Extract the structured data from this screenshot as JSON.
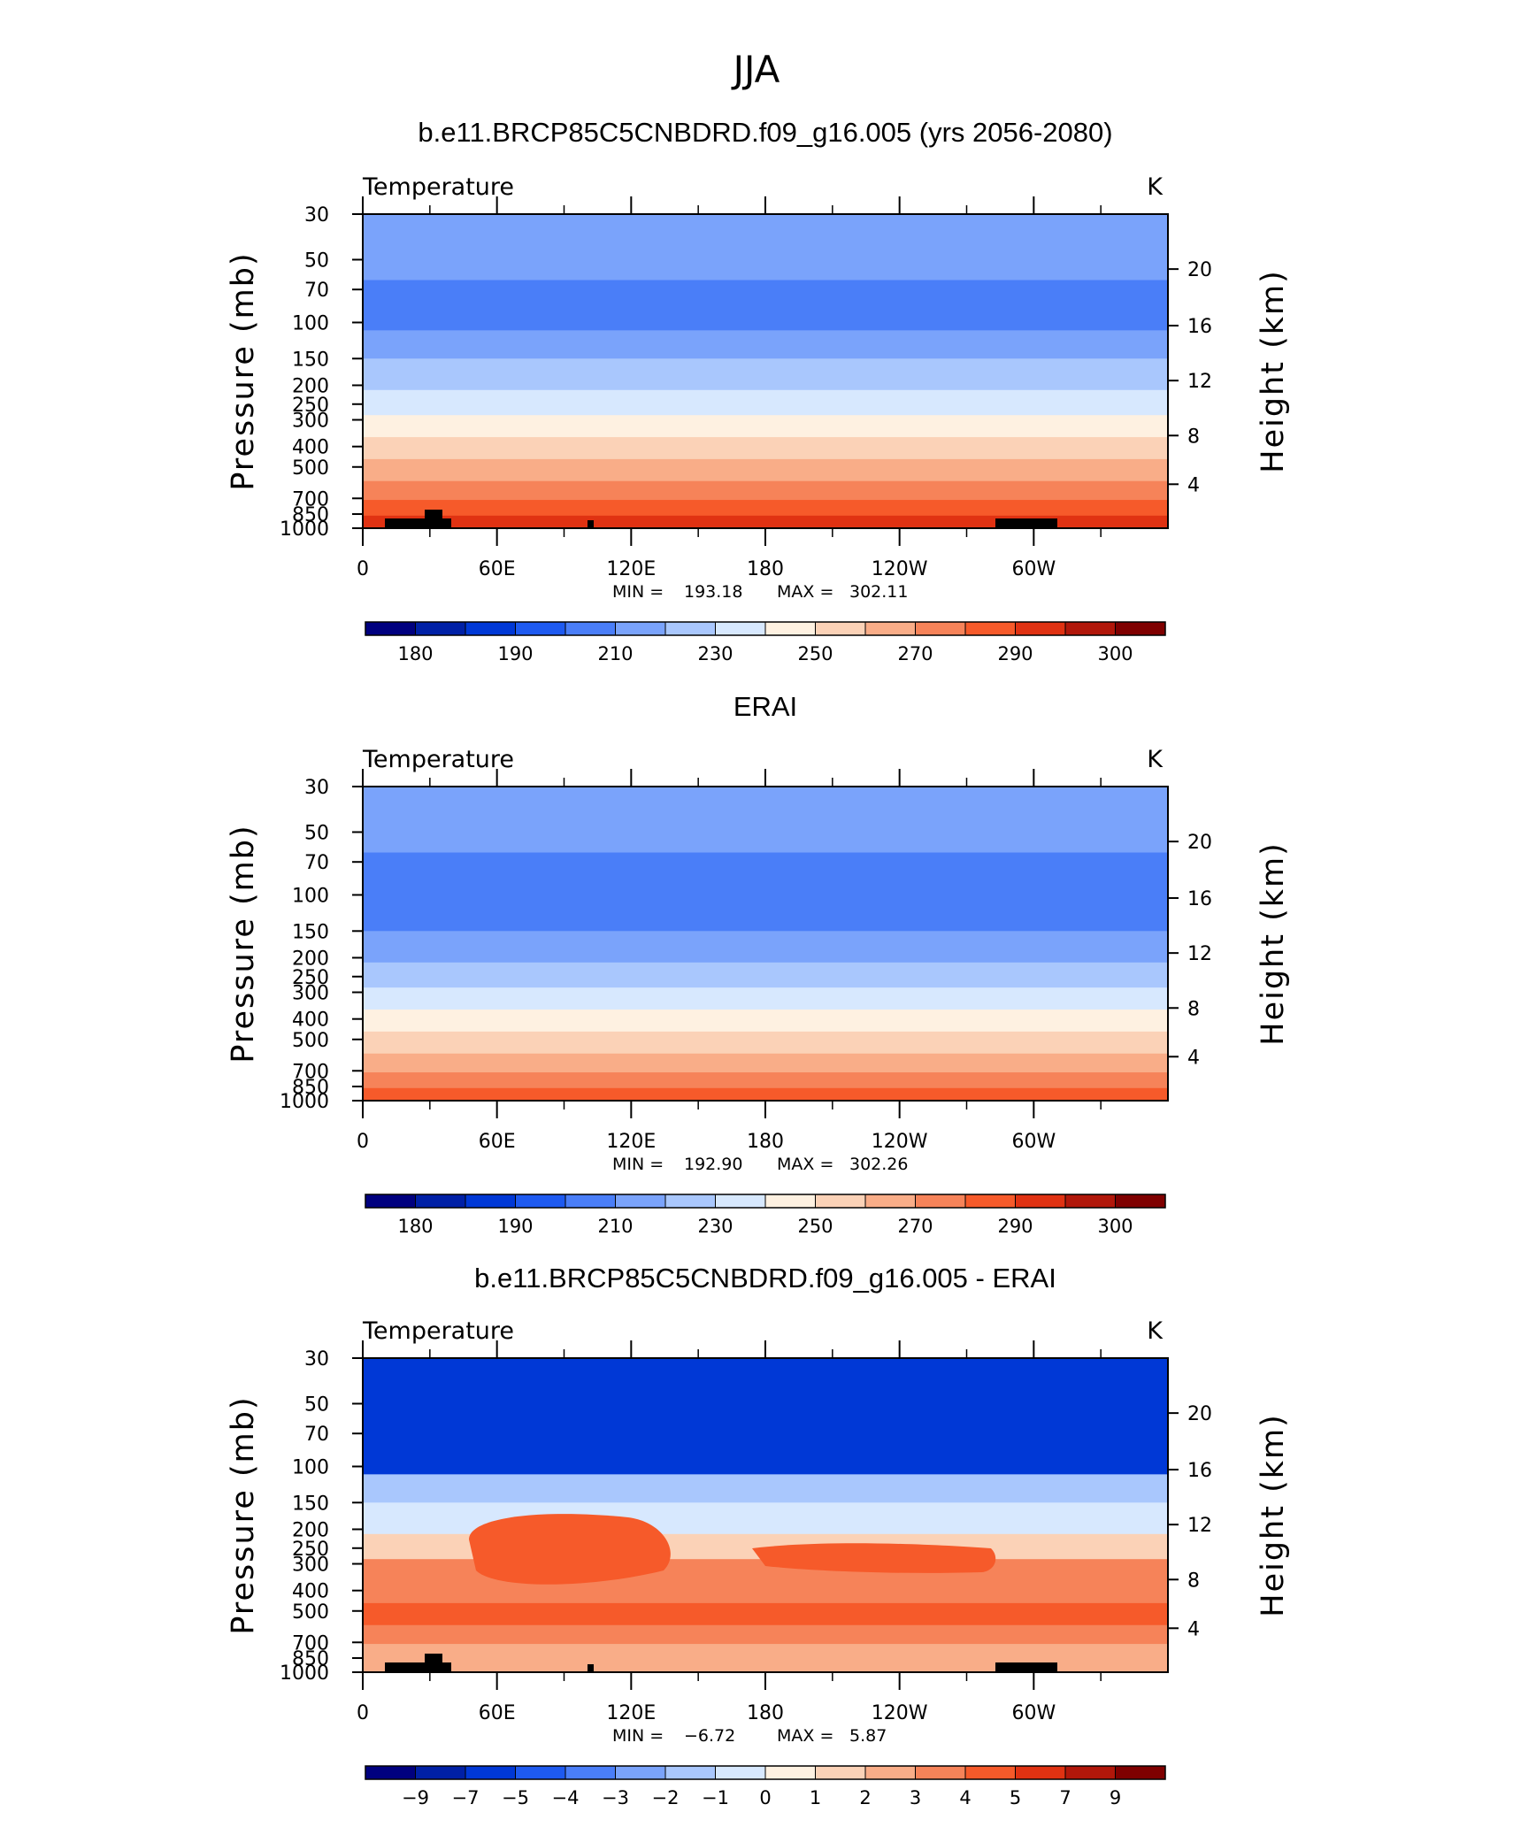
{
  "figure": {
    "title": "JJA"
  },
  "colors": {
    "temperature": [
      "#00007f",
      "#0020a6",
      "#0038d6",
      "#1e5af0",
      "#4a7ef8",
      "#7aa3fb",
      "#a9c7fd",
      "#d7e8fe",
      "#fef1e1",
      "#fbd2b7",
      "#f9ad88",
      "#f68359",
      "#f65a2a",
      "#e03212",
      "#b1170a",
      "#7f0000"
    ],
    "land": "#000000"
  },
  "chart_data": [
    {
      "type": "contour",
      "title": "b.e11.BRCP85C5CNBDRD.f09_g16.005 (yrs 2056-2080)",
      "variable": "Temperature",
      "units": "K",
      "ylabel": "Pressure (mb)",
      "ylabel_right": "Height (km)",
      "pressure_ticks": [
        "30",
        "50",
        "70",
        "100",
        "150",
        "200",
        "250",
        "300",
        "400",
        "500",
        "700",
        "850",
        "1000"
      ],
      "height_ticks": [
        "4",
        "8",
        "12",
        "16",
        "20"
      ],
      "x_ticks": [
        "0",
        "60E",
        "120E",
        "180",
        "120W",
        "60W"
      ],
      "min_label": "MIN =",
      "min_value": "193.18",
      "max_label": "MAX =",
      "max_value": "302.11",
      "colorbar_labels": [
        "180",
        "190",
        "210",
        "230",
        "250",
        "270",
        "290",
        "300"
      ],
      "band_levels": [
        5,
        4,
        5,
        6,
        7,
        8,
        9,
        10,
        11,
        12,
        13
      ],
      "land_mask": true
    },
    {
      "type": "contour",
      "title": "ERAI",
      "variable": "Temperature",
      "units": "K",
      "ylabel": "Pressure (mb)",
      "ylabel_right": "Height (km)",
      "pressure_ticks": [
        "30",
        "50",
        "70",
        "100",
        "150",
        "200",
        "250",
        "300",
        "400",
        "500",
        "700",
        "850",
        "1000"
      ],
      "height_ticks": [
        "4",
        "8",
        "12",
        "16",
        "20"
      ],
      "x_ticks": [
        "0",
        "60E",
        "120E",
        "180",
        "120W",
        "60W"
      ],
      "min_label": "MIN =",
      "min_value": "192.90",
      "max_label": "MAX =",
      "max_value": "302.26",
      "colorbar_labels": [
        "180",
        "190",
        "210",
        "230",
        "250",
        "270",
        "290",
        "300"
      ],
      "band_levels": [
        5,
        4,
        4,
        5,
        6,
        7,
        8,
        9,
        10,
        11,
        12,
        13
      ],
      "land_mask": false
    },
    {
      "type": "contour",
      "title": "b.e11.BRCP85C5CNBDRD.f09_g16.005 - ERAI",
      "variable": "Temperature",
      "units": "K",
      "ylabel": "Pressure (mb)",
      "ylabel_right": "Height (km)",
      "pressure_ticks": [
        "30",
        "50",
        "70",
        "100",
        "150",
        "200",
        "250",
        "300",
        "400",
        "500",
        "700",
        "850",
        "1000"
      ],
      "height_ticks": [
        "4",
        "8",
        "12",
        "16",
        "20"
      ],
      "x_ticks": [
        "0",
        "60E",
        "120E",
        "180",
        "120W",
        "60W"
      ],
      "min_label": "MIN =",
      "min_value": "−6.72",
      "max_label": "MAX =",
      "max_value": "5.87",
      "colorbar_labels": [
        "−9",
        "−7",
        "−5",
        "−4",
        "−3",
        "−2",
        "−1",
        "0",
        "1",
        "2",
        "3",
        "4",
        "5",
        "7",
        "9"
      ],
      "band_levels": [
        2,
        2,
        6,
        7,
        9,
        11,
        11,
        12,
        11,
        10,
        9
      ],
      "land_mask": true
    }
  ]
}
